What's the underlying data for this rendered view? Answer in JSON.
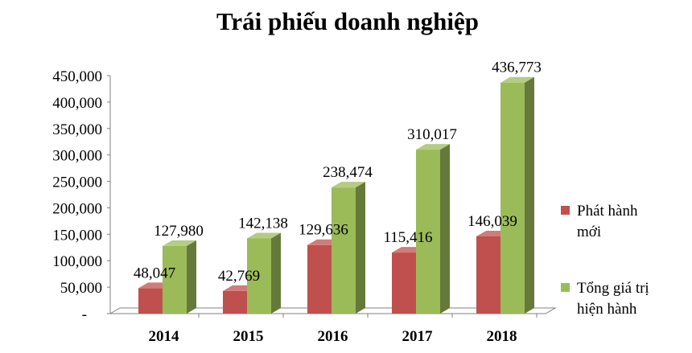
{
  "chart_data": {
    "type": "bar",
    "title": "Trái phiếu doanh nghiệp",
    "categories": [
      "2014",
      "2015",
      "2016",
      "2017",
      "2018"
    ],
    "series": [
      {
        "name": "Phát hành mới",
        "values": [
          48047,
          42769,
          129636,
          115416,
          146039
        ],
        "labels": [
          "48,047",
          "42,769",
          "129,636",
          "115,416",
          "146,039"
        ],
        "color": "#c0504d"
      },
      {
        "name": "Tổng giá trị hiện hành",
        "values": [
          127980,
          142138,
          238474,
          310017,
          436773
        ],
        "labels": [
          "127,980",
          "142,138",
          "238,474",
          "310,017",
          "436,773"
        ],
        "color": "#9bbb59"
      }
    ],
    "legend": {
      "position": "right",
      "items": [
        {
          "lines": [
            "Phát hành",
            "mới"
          ],
          "color": "#c0504d"
        },
        {
          "lines": [
            "Tổng giá trị",
            "hiện hành"
          ],
          "color": "#9bbb59"
        }
      ]
    },
    "ylim": [
      0,
      450000
    ],
    "yticks": [
      "-",
      "50,000",
      "100,000",
      "150,000",
      "200,000",
      "250,000",
      "300,000",
      "350,000",
      "400,000",
      "450,000"
    ],
    "grid": false,
    "style": "3d"
  }
}
